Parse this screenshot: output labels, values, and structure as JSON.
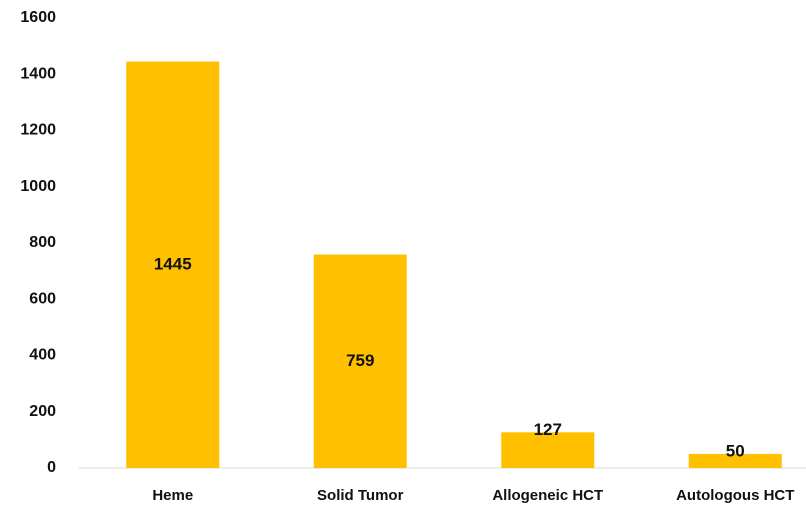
{
  "chart_data": {
    "type": "bar",
    "categories": [
      "Heme",
      "Solid Tumor",
      "Allogeneic HCT",
      "Autologous HCT"
    ],
    "values": [
      1445,
      759,
      127,
      50
    ],
    "color": "#ffc000",
    "ylim": [
      0,
      1600
    ],
    "yticks": [
      0,
      200,
      400,
      600,
      800,
      1000,
      1200,
      1400,
      1600
    ],
    "grid": false
  }
}
